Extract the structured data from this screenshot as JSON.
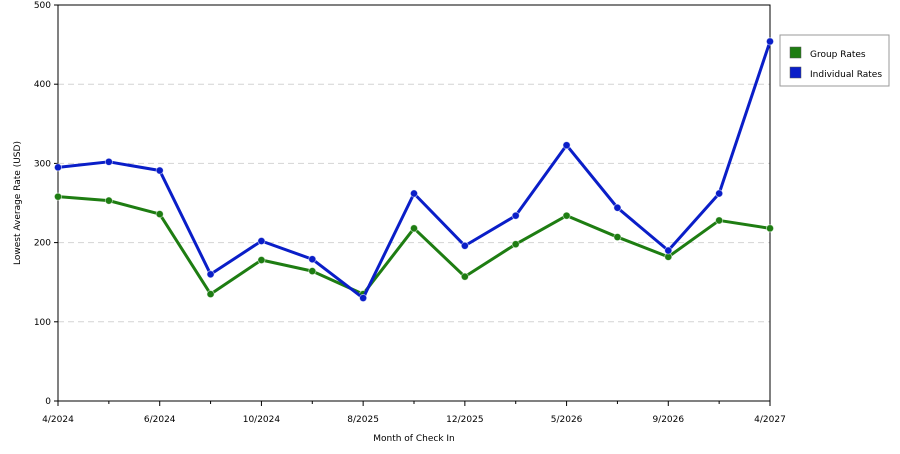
{
  "chart_data": {
    "type": "line",
    "xlabel": "Month of Check In",
    "ylabel": "Lowest Average Rate (USD)",
    "ylim": [
      0,
      500
    ],
    "yticks": [
      0,
      100,
      200,
      300,
      400,
      500
    ],
    "xtick_labels": [
      "4/2024",
      "6/2024",
      "10/2024",
      "8/2025",
      "12/2025",
      "5/2026",
      "9/2026",
      "4/2027"
    ],
    "grid": "horizontal dashed",
    "legend_position": "right",
    "series": [
      {
        "name": "Group Rates",
        "color": "#1e7d12",
        "values": [
          258,
          253,
          236,
          135,
          178,
          164,
          135,
          218,
          157,
          198,
          234,
          207,
          182,
          228,
          218
        ]
      },
      {
        "name": "Individual Rates",
        "color": "#0a1ec8",
        "values": [
          295,
          302,
          291,
          160,
          202,
          179,
          130,
          262,
          196,
          234,
          323,
          244,
          190,
          262,
          454
        ]
      }
    ]
  }
}
